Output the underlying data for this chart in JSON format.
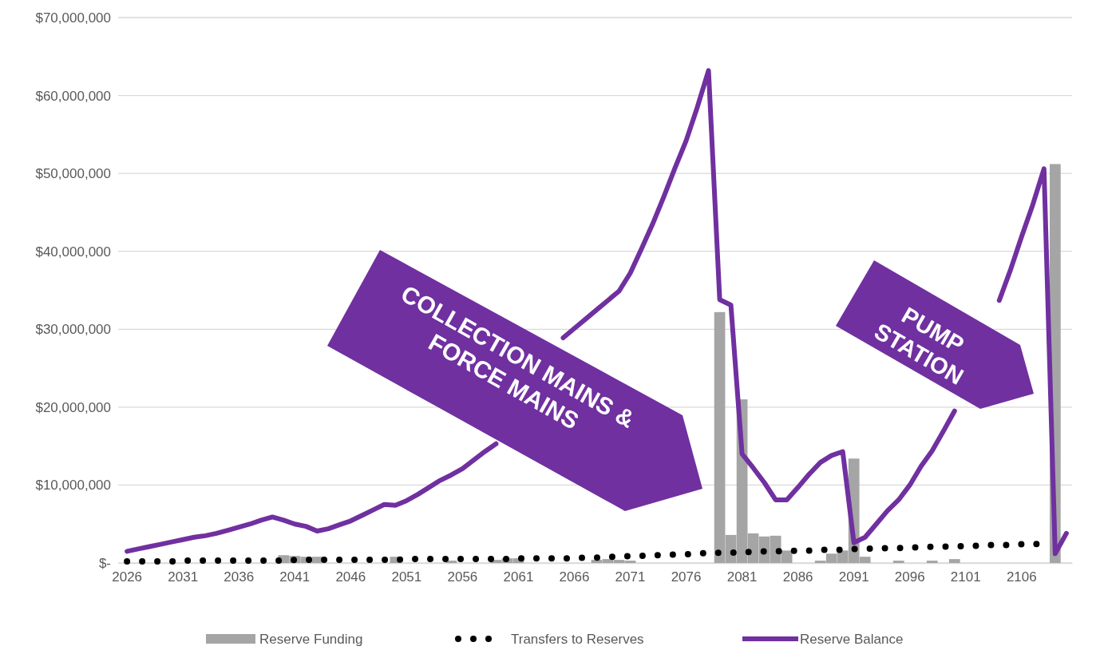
{
  "chart_data": {
    "type": "bar",
    "categories": [
      "2026",
      null,
      null,
      null,
      null,
      "2031",
      null,
      null,
      null,
      null,
      "2036",
      null,
      null,
      null,
      null,
      "2041",
      null,
      null,
      null,
      null,
      "2046",
      null,
      null,
      null,
      null,
      "2051",
      null,
      null,
      null,
      null,
      "2056",
      null,
      null,
      null,
      null,
      "2061",
      null,
      null,
      null,
      null,
      "2066",
      null,
      null,
      null,
      null,
      "2071",
      null,
      null,
      null,
      null,
      "2076",
      null,
      null,
      null,
      null,
      "2081",
      null,
      null,
      null,
      null,
      "2086",
      null,
      null,
      null,
      null,
      "2091",
      null,
      null,
      null,
      null,
      "2096",
      null,
      null,
      null,
      null,
      "2101",
      null,
      null,
      null,
      null,
      "2106",
      null,
      null,
      null,
      null
    ],
    "series": [
      {
        "name": "Reserve Funding",
        "color": "#a5a5a5",
        "values": [
          null,
          null,
          null,
          null,
          null,
          null,
          null,
          null,
          null,
          null,
          null,
          null,
          null,
          null,
          1000000,
          900000,
          800000,
          800000,
          null,
          null,
          null,
          null,
          null,
          null,
          800000,
          null,
          null,
          null,
          null,
          300000,
          null,
          null,
          null,
          400000,
          600000,
          600000,
          null,
          null,
          null,
          null,
          null,
          null,
          400000,
          500000,
          400000,
          300000,
          null,
          null,
          null,
          null,
          null,
          null,
          null,
          32200000,
          3600000,
          21000000,
          3800000,
          3400000,
          3500000,
          1600000,
          null,
          null,
          300000,
          1200000,
          1600000,
          13400000,
          800000,
          null,
          null,
          300000,
          null,
          null,
          300000,
          null,
          500000,
          null,
          null,
          null,
          null,
          null,
          null,
          null,
          null,
          51200000,
          null
        ]
      },
      {
        "name": "Transfers to Reserves",
        "type": "line",
        "color": "#000000",
        "line_style": "dotted",
        "values": [
          200000,
          200000,
          200000,
          200000,
          200000,
          300000,
          300000,
          300000,
          300000,
          300000,
          300000,
          300000,
          300000,
          300000,
          300000,
          400000,
          400000,
          400000,
          400000,
          400000,
          400000,
          400000,
          400000,
          400000,
          400000,
          500000,
          500000,
          500000,
          500000,
          500000,
          500000,
          500000,
          500000,
          500000,
          500000,
          600000,
          600000,
          600000,
          600000,
          600000,
          600000,
          700000,
          700000,
          800000,
          800000,
          900000,
          900000,
          1000000,
          1000000,
          1100000,
          1100000,
          1200000,
          1300000,
          1300000,
          1300000,
          1400000,
          1400000,
          1500000,
          1500000,
          1500000,
          1600000,
          1600000,
          1700000,
          1700000,
          1700000,
          1800000,
          1800000,
          1900000,
          1900000,
          1900000,
          2000000,
          2000000,
          2100000,
          2100000,
          2100000,
          2200000,
          2200000,
          2300000,
          2300000,
          2300000,
          2400000,
          2400000,
          2500000,
          null,
          null
        ]
      },
      {
        "name": "Reserve Balance",
        "type": "line",
        "color": "#7030a0",
        "line_style": "solid",
        "values": [
          1500000,
          1800000,
          2100000,
          2400000,
          2700000,
          3000000,
          3300000,
          3500000,
          3800000,
          4200000,
          4600000,
          5000000,
          5500000,
          5900000,
          5500000,
          5000000,
          4700000,
          4100000,
          4400000,
          4900000,
          5400000,
          6100000,
          6800000,
          7500000,
          7400000,
          8000000,
          8800000,
          9700000,
          10600000,
          11300000,
          12100000,
          13200000,
          14300000,
          15300000,
          null,
          null,
          null,
          null,
          null,
          28900000,
          30100000,
          31300000,
          32500000,
          33700000,
          34900000,
          37200000,
          40300000,
          43500000,
          47000000,
          50700000,
          54200000,
          58500000,
          63200000,
          33800000,
          33100000,
          14000000,
          12200000,
          10300000,
          8100000,
          8100000,
          9700000,
          11400000,
          12900000,
          13800000,
          14300000,
          2600000,
          3300000,
          5000000,
          6700000,
          8100000,
          10000000,
          12400000,
          14400000,
          16900000,
          19500000,
          null,
          null,
          null,
          33700000,
          37600000,
          41900000,
          46000000,
          50600000,
          1200000,
          3800000
        ]
      }
    ],
    "ylim": [
      0,
      70000000
    ],
    "yticks": [
      {
        "value": 0,
        "label": "$-"
      },
      {
        "value": 10000000,
        "label": "$10,000,000"
      },
      {
        "value": 20000000,
        "label": "$20,000,000"
      },
      {
        "value": 30000000,
        "label": "$30,000,000"
      },
      {
        "value": 40000000,
        "label": "$40,000,000"
      },
      {
        "value": 50000000,
        "label": "$50,000,000"
      },
      {
        "value": 60000000,
        "label": "$60,000,000"
      },
      {
        "value": 70000000,
        "label": "$70,000,000"
      }
    ],
    "grid": "y",
    "legend": "bottom",
    "annotations": [
      "COLLECTION MAINS &\nFORCE MAINS",
      "PUMP STATION"
    ]
  }
}
